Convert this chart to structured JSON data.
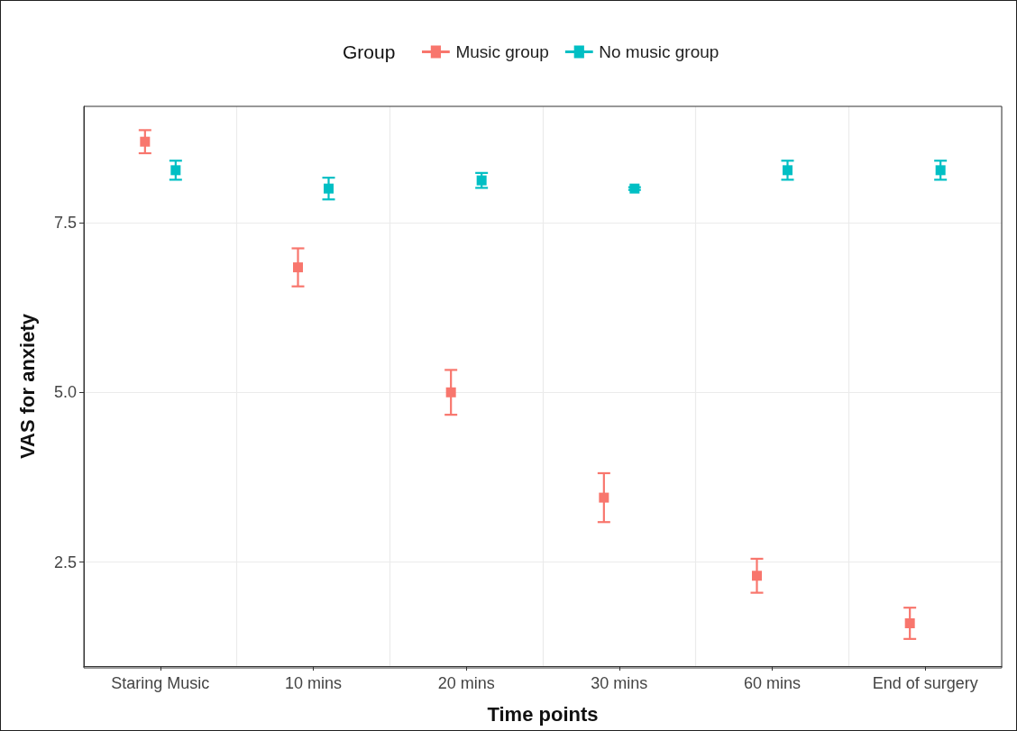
{
  "chart_data": {
    "type": "scatter",
    "xlabel": "Time points",
    "ylabel": "VAS for anxiety",
    "legend_title": "Group",
    "categories": [
      "Staring Music",
      "10 mins",
      "20 mins",
      "30 mins",
      "60 mins",
      "End of surgery"
    ],
    "series": [
      {
        "name": "Music group",
        "color": "#f8766d",
        "values": [
          8.69,
          6.84,
          5.0,
          3.45,
          2.3,
          1.6
        ],
        "errors": [
          0.17,
          0.28,
          0.33,
          0.36,
          0.25,
          0.23
        ]
      },
      {
        "name": "No music group",
        "color": "#00bfc4",
        "values": [
          8.27,
          8.0,
          8.12,
          8.0,
          8.27,
          8.27
        ],
        "errors": [
          0.14,
          0.16,
          0.11,
          0.02,
          0.14,
          0.14
        ]
      }
    ],
    "ylim": [
      0.97,
      9.21
    ],
    "yticks": [
      {
        "value": 2.5,
        "label": "2.5"
      },
      {
        "value": 5.0,
        "label": "5.0"
      },
      {
        "value": 7.5,
        "label": "7.5"
      }
    ],
    "grid": true,
    "legend": "top",
    "marker": "square"
  }
}
